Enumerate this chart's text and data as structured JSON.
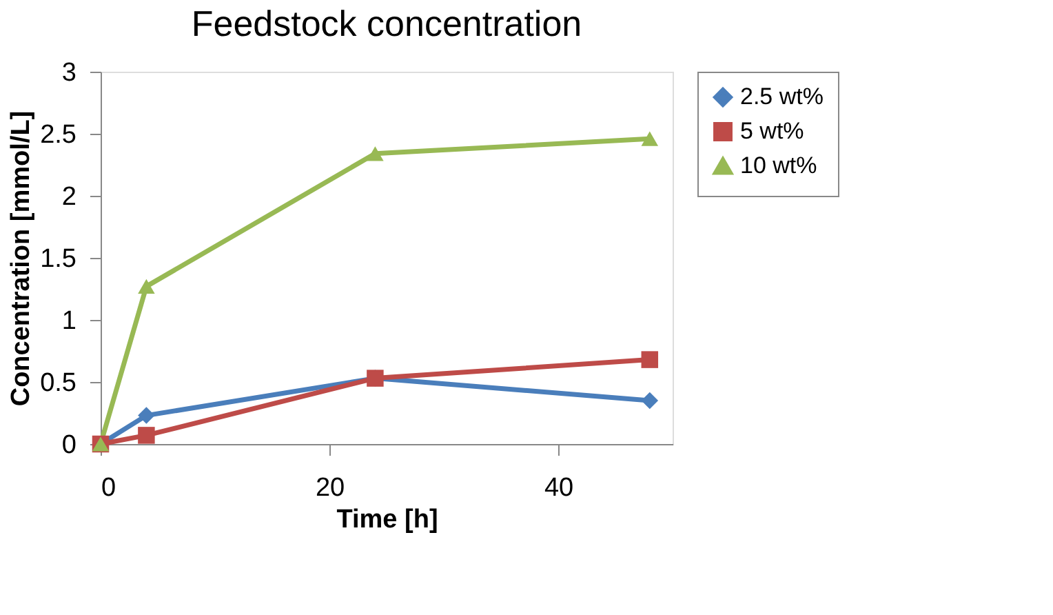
{
  "chart_data": {
    "type": "line",
    "title": "Feedstock concentration",
    "xlabel": "Time [h]",
    "ylabel": "Concentration [mmol/L]",
    "x": [
      0,
      4,
      24,
      48
    ],
    "series": [
      {
        "name": "2.5 wt%",
        "color": "#4a7ebb",
        "marker": "diamond",
        "values": [
          0,
          0.23,
          0.53,
          0.35
        ]
      },
      {
        "name": "5 wt%",
        "color": "#be4b48",
        "marker": "square",
        "values": [
          0,
          0.07,
          0.53,
          0.68
        ]
      },
      {
        "name": "10 wt%",
        "color": "#98b954",
        "marker": "triangle",
        "values": [
          0,
          1.27,
          2.34,
          2.46
        ]
      }
    ],
    "xlim": [
      0,
      50
    ],
    "xticks": [
      0,
      20,
      40
    ],
    "ylim": [
      0,
      3
    ],
    "yticks": [
      0,
      0.5,
      1,
      1.5,
      2,
      2.5,
      3
    ],
    "grid": false,
    "legend": "right",
    "line_style": "solid"
  }
}
